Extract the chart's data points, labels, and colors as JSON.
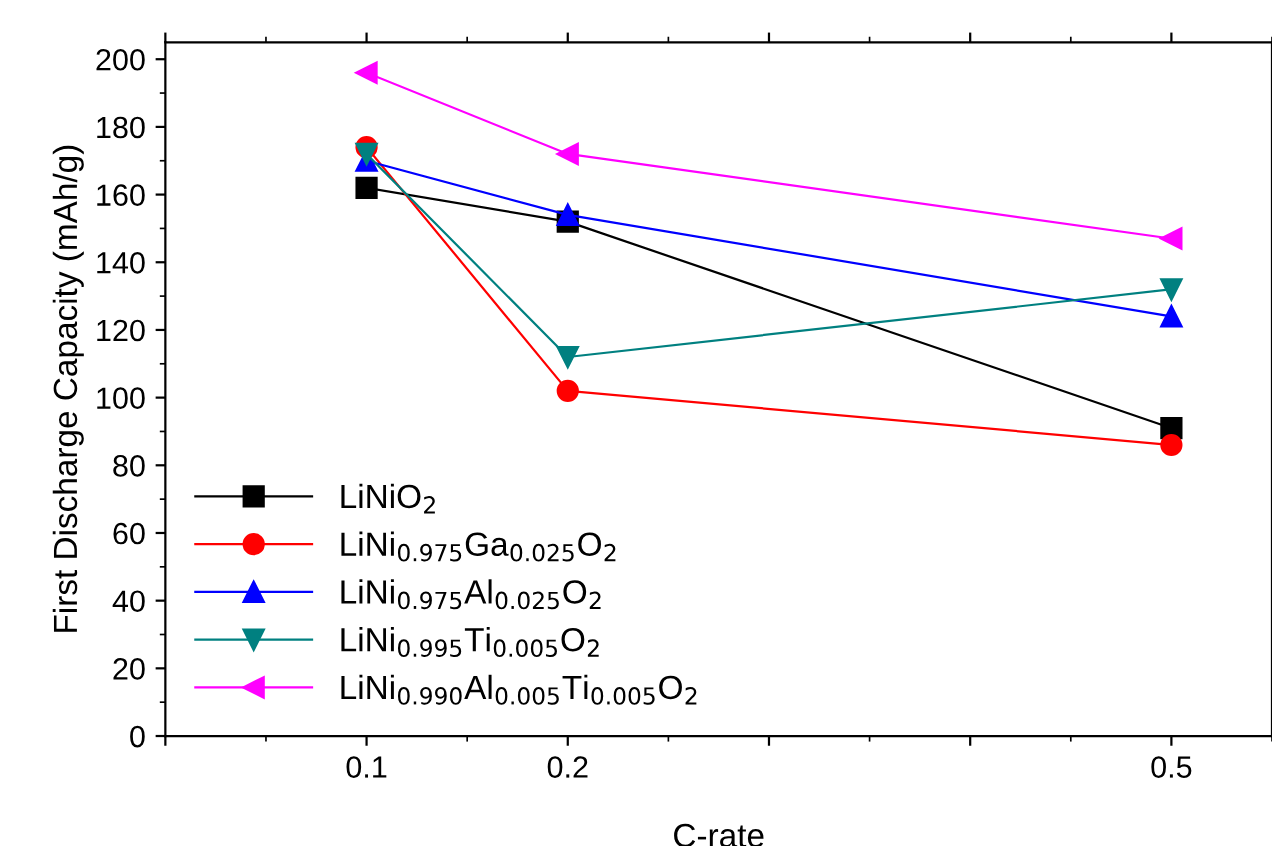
{
  "chart_data": {
    "type": "line",
    "xlabel": "C-rate",
    "ylabel": "First Discharge Capacity (mAh/g)",
    "x": [
      0.1,
      0.2,
      0.5
    ],
    "series": [
      {
        "name": "LiNiO$_{2}$",
        "color": "#000000",
        "marker": "square",
        "values": [
          162,
          152,
          91
        ]
      },
      {
        "name": "LiNi$_{0.975}$Ga$_{0.025}$O$_{2}$",
        "color": "#ff0000",
        "marker": "circle",
        "values": [
          174,
          102,
          86
        ]
      },
      {
        "name": "LiNi$_{0.975}$Al$_{0.025}$O$_{2}$",
        "color": "#0000ff",
        "marker": "triangle",
        "values": [
          170,
          154,
          124
        ]
      },
      {
        "name": "LiNi$_{0.995}$Ti$_{0.005}$O$_{2}$",
        "color": "#008080",
        "marker": "triangle_down",
        "values": [
          172,
          112,
          132
        ]
      },
      {
        "name": "LiNi$_{0.990}$Al$_{0.005}$Ti$_{0.005}$O$_{2}$",
        "color": "#ff00ff",
        "marker": "triangle_left",
        "values": [
          196,
          172,
          147
        ]
      }
    ],
    "xlim": [
      0,
      0.55
    ],
    "xticks": [
      {
        "value": 0,
        "label": null
      },
      0.1,
      0.2,
      {
        "value": 0.3,
        "label": null
      },
      {
        "value": 0.4,
        "label": null
      },
      0.5
    ],
    "ylim": [
      0,
      205
    ],
    "yticks": [
      0,
      20,
      40,
      60,
      80,
      100,
      120,
      140,
      160,
      180,
      200
    ],
    "grid": false,
    "legend": "bottom left",
    "line_style": "solid"
  }
}
